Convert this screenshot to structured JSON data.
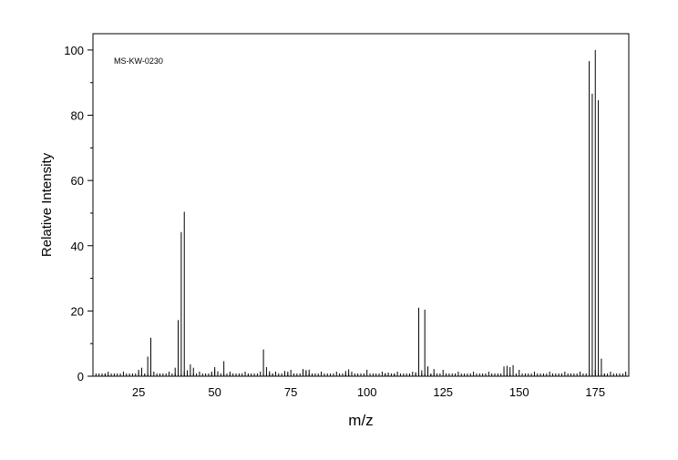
{
  "chart_data": {
    "type": "bar",
    "subtype": "mass-spectrum-stick",
    "annotation": "MS-KW-0230",
    "xlabel": "m/z",
    "ylabel": "Relative Intensity",
    "xlim": [
      10,
      186
    ],
    "ylim": [
      0,
      105
    ],
    "x_ticks": [
      25,
      50,
      75,
      100,
      125,
      150,
      175
    ],
    "y_ticks": [
      0,
      20,
      40,
      60,
      80,
      100
    ],
    "grid": false,
    "legend": "none",
    "colors": {
      "line": "#000000",
      "background": "#ffffff"
    },
    "peaks": [
      {
        "x": 13,
        "y": 0.6
      },
      {
        "x": 14,
        "y": 0.8
      },
      {
        "x": 15,
        "y": 0.4
      },
      {
        "x": 25,
        "y": 1.2
      },
      {
        "x": 26,
        "y": 2.6
      },
      {
        "x": 27,
        "y": 0.5
      },
      {
        "x": 28,
        "y": 6.0
      },
      {
        "x": 29,
        "y": 11.8
      },
      {
        "x": 37,
        "y": 2.6
      },
      {
        "x": 38,
        "y": 17.2
      },
      {
        "x": 39,
        "y": 44.2
      },
      {
        "x": 40,
        "y": 50.4
      },
      {
        "x": 41,
        "y": 1.8
      },
      {
        "x": 42,
        "y": 3.6
      },
      {
        "x": 43,
        "y": 2.6
      },
      {
        "x": 49,
        "y": 1.4
      },
      {
        "x": 50,
        "y": 2.8
      },
      {
        "x": 51,
        "y": 1.5
      },
      {
        "x": 53,
        "y": 4.6
      },
      {
        "x": 55,
        "y": 0.7
      },
      {
        "x": 66,
        "y": 8.2
      },
      {
        "x": 67,
        "y": 2.8
      },
      {
        "x": 68,
        "y": 1.5
      },
      {
        "x": 69,
        "y": 0.8
      },
      {
        "x": 73,
        "y": 1.6
      },
      {
        "x": 74,
        "y": 1.4
      },
      {
        "x": 79,
        "y": 2.2
      },
      {
        "x": 80,
        "y": 1.9
      },
      {
        "x": 81,
        "y": 2.0
      },
      {
        "x": 82,
        "y": 0.8
      },
      {
        "x": 93,
        "y": 1.6
      },
      {
        "x": 94,
        "y": 2.1
      },
      {
        "x": 95,
        "y": 1.0
      },
      {
        "x": 106,
        "y": 0.9
      },
      {
        "x": 107,
        "y": 1.1
      },
      {
        "x": 109,
        "y": 0.7
      },
      {
        "x": 116,
        "y": 1.2
      },
      {
        "x": 117,
        "y": 21.0
      },
      {
        "x": 118,
        "y": 1.8
      },
      {
        "x": 119,
        "y": 20.4
      },
      {
        "x": 120,
        "y": 3.0
      },
      {
        "x": 121,
        "y": 0.6
      },
      {
        "x": 122,
        "y": 2.2
      },
      {
        "x": 145,
        "y": 3.0
      },
      {
        "x": 146,
        "y": 3.2
      },
      {
        "x": 147,
        "y": 2.8
      },
      {
        "x": 148,
        "y": 3.4
      },
      {
        "x": 173,
        "y": 96.6
      },
      {
        "x": 174,
        "y": 86.6
      },
      {
        "x": 175,
        "y": 100.0
      },
      {
        "x": 176,
        "y": 84.6
      },
      {
        "x": 177,
        "y": 5.4
      },
      {
        "x": 178,
        "y": 0.6
      }
    ]
  }
}
